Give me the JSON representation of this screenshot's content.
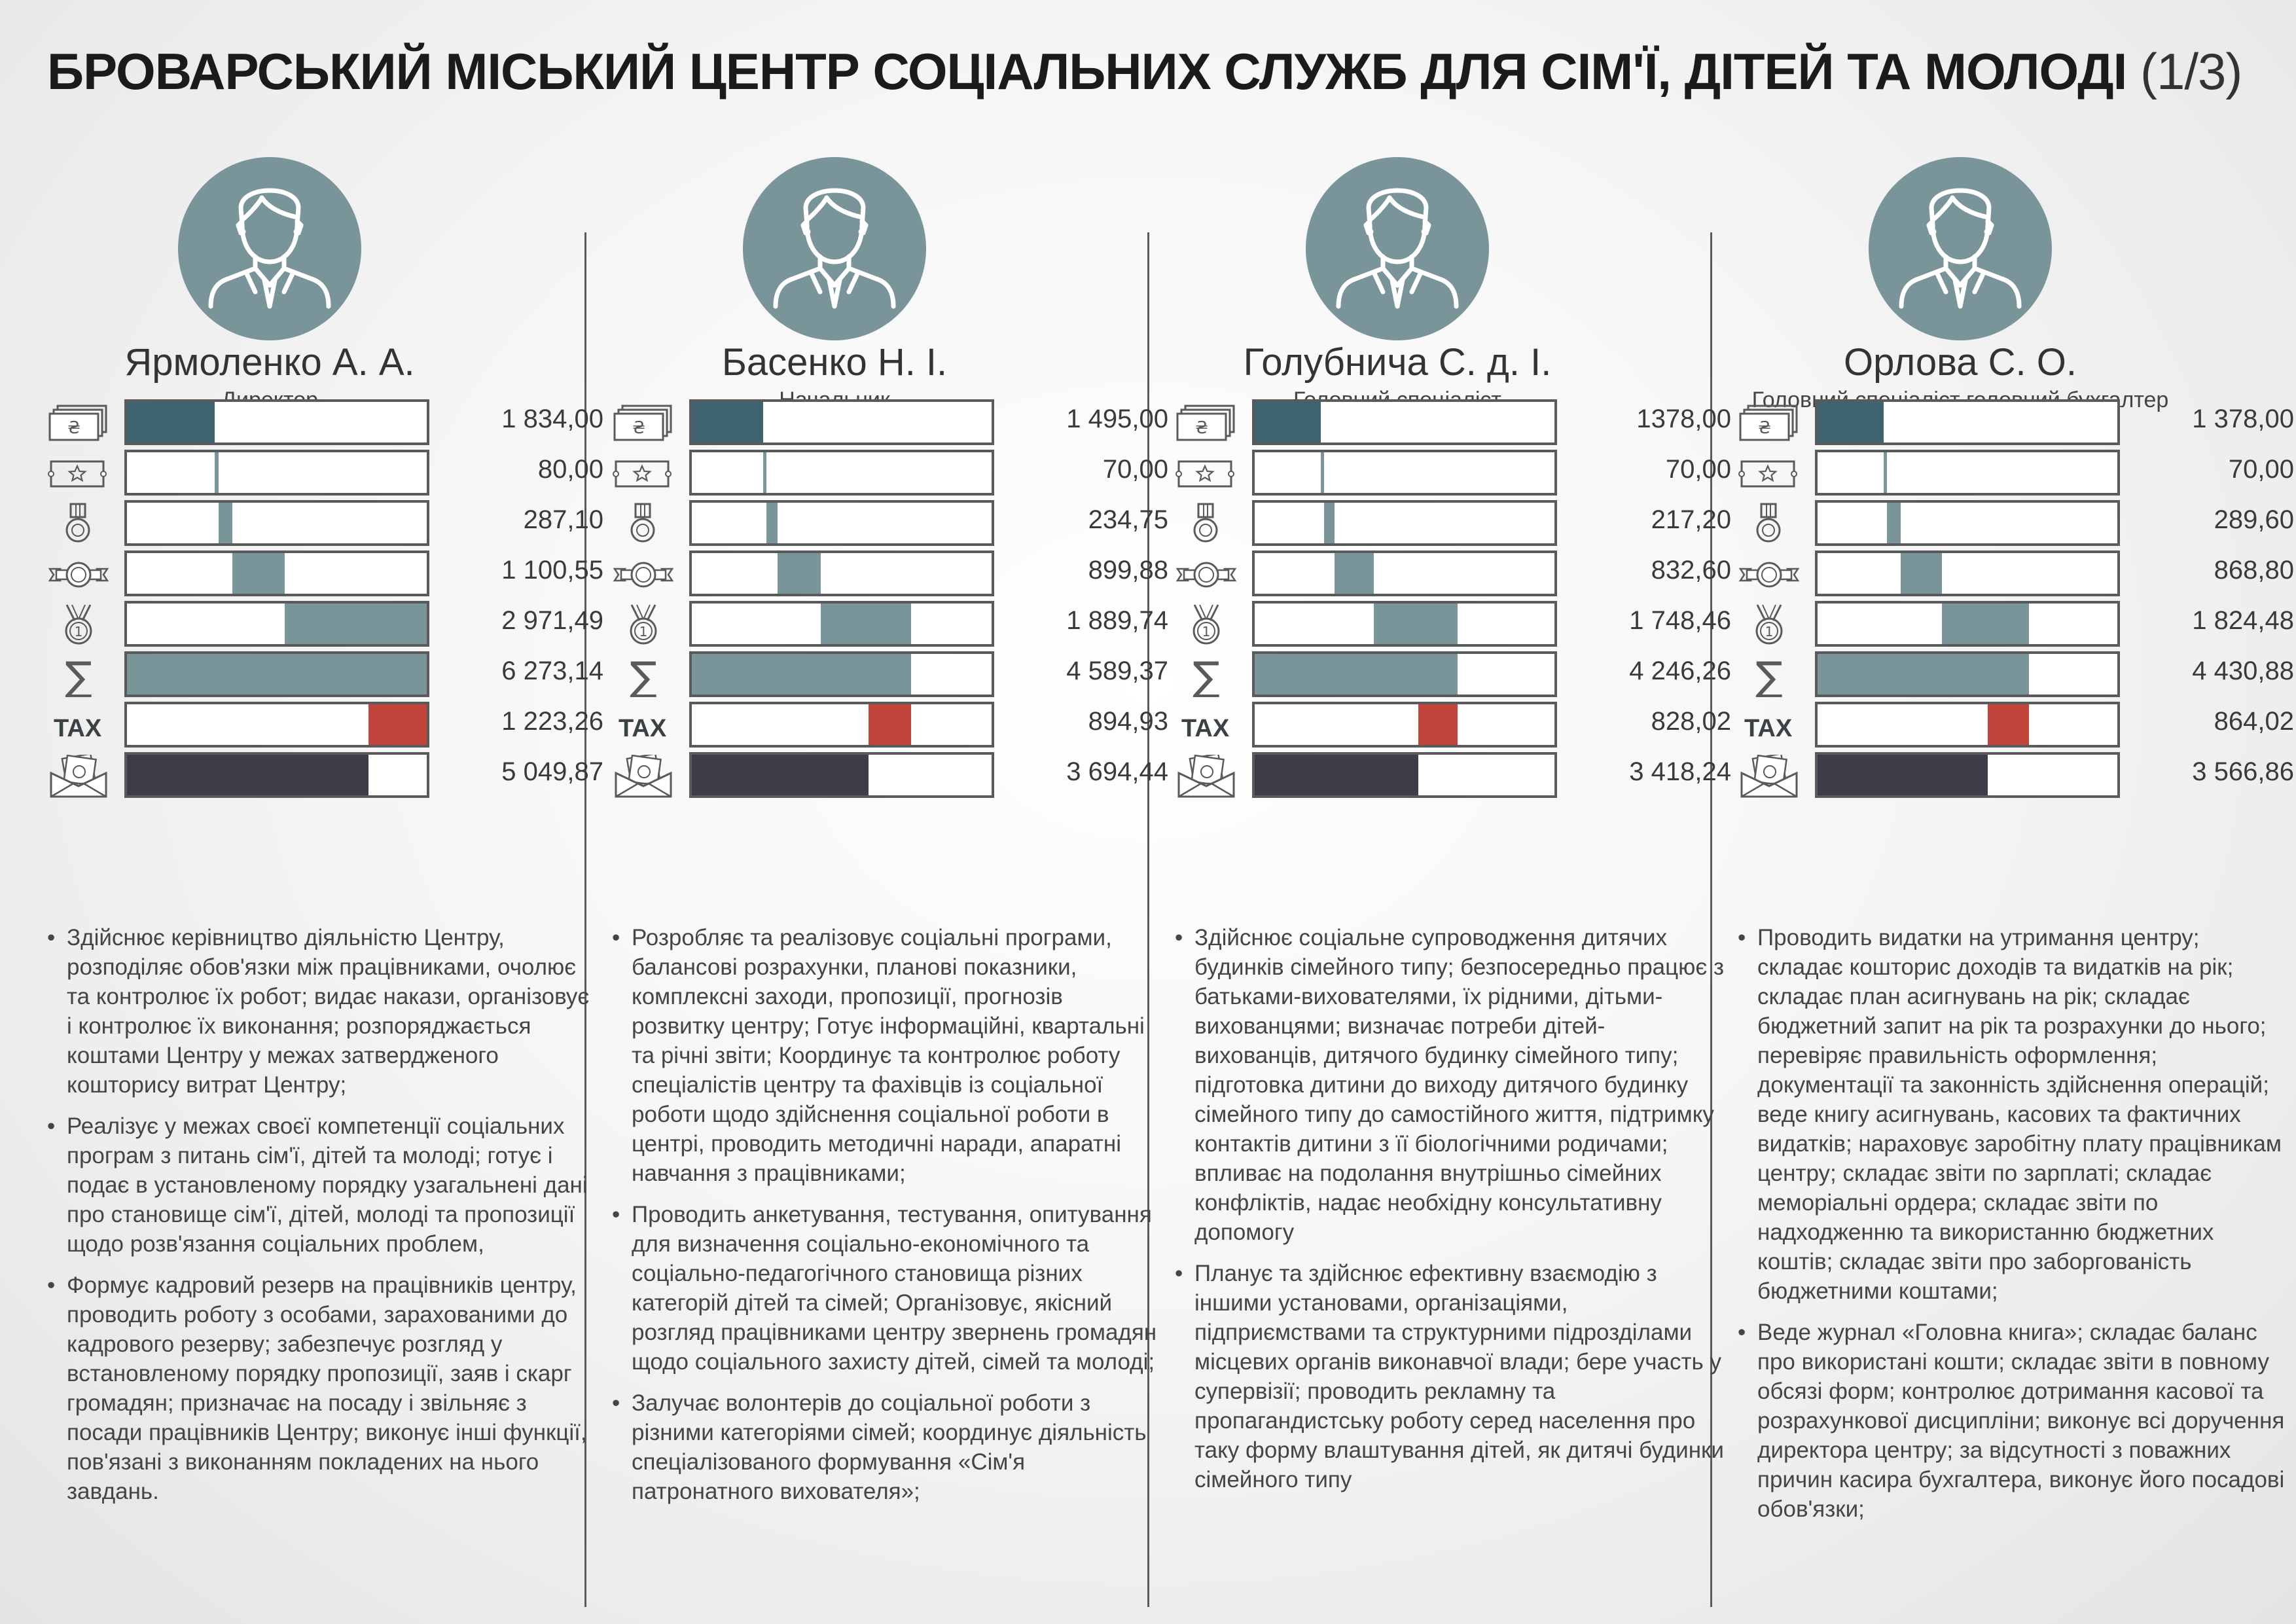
{
  "title": {
    "main": "БРОВАРСЬКИЙ МІСЬКИЙ ЦЕНТР СОЦІАЛЬНИХ СЛУЖБ ДЛЯ СІМ'Ї, ДІТЕЙ ТА МОЛОДІ",
    "part": "(1/3)"
  },
  "colors": {
    "salary": "#3f6470",
    "bonus": "#79959a",
    "tax": "#c0443a",
    "net": "#3d3d4a",
    "avatar": "#79959a"
  },
  "icon_names": [
    "money-icon",
    "ticket-star-icon",
    "medal-icon",
    "badge-icon",
    "award-medal-icon",
    "sum-icon",
    "tax-icon",
    "envelope-money-icon"
  ],
  "tax_label": "TAX",
  "bar_scale_max": 6273.14,
  "employees": [
    {
      "name": "Ярмоленко А. А.",
      "role": "Директор",
      "amounts": [
        1834.0,
        80.0,
        287.1,
        1100.55,
        2971.49,
        6273.14,
        1223.26,
        5049.87
      ],
      "labels": [
        "1 834,00",
        "80,00",
        "287,10",
        "1 100,55",
        "2 971,49",
        "6 273,14",
        "1 223,26",
        "5 049,87"
      ],
      "duties": [
        "Здійснює керівництво діяльністю Центру, розподіляє обов'язки між працівниками, очолює та контролює їх робот; видає накази, організовує і контролює їх виконання; розпоряджається коштами Центру у межах затвердженого кошторису витрат Центру;",
        "Реалізує у межах своєї компетенції соціальних програм з питань сім'ї, дітей та молоді; готує і подає в установленому порядку узагальнені дані про становище сім'ї, дітей, молоді та пропозиції щодо розв'язання соціальних проблем,",
        "Формує кадровий резерв на працівників центру, проводить роботу з особами, зарахованими до кадрового резерву; забезпечує розгляд у встановленому порядку пропозиції, заяв і скарг громадян; призначає на посаду і звільняє з посади працівників Центру; виконує інші функції, пов'язані з виконанням покладених на нього завдань."
      ]
    },
    {
      "name": "Басенко Н. І.",
      "role": "Начальник",
      "amounts": [
        1495.0,
        70.0,
        234.75,
        899.88,
        1889.74,
        4589.37,
        894.93,
        3694.44
      ],
      "labels": [
        "1 495,00",
        "70,00",
        "234,75",
        "899,88",
        "1 889,74",
        "4 589,37",
        "894,93",
        "3 694,44"
      ],
      "duties": [
        "Розробляє та реалізовує соціальні програми, балансові розрахунки, планові показники, комплексні заходи, пропозиції, прогнозів розвитку центру; Готує інформаційні, квартальні та річні звіти; Координує та контролює роботу спеціалістів центру та фахівців із соціальної роботи щодо здійснення соціальної роботи в центрі, проводить методичні наради, апаратні навчання з працівниками;",
        "Проводить анкетування, тестування, опитування для визначення соціально-економічного та соціально-педагогічного становища різних категорій дітей та сімей; Організовує, якісний розгляд працівниками центру звернень громадян щодо соціального захисту дітей, сімей та молоді;",
        "Залучає волонтерів до соціальної роботи з різними категоріями сімей; координує діяльність спеціалізованого формування «Сім'я патронатного вихователя»;"
      ]
    },
    {
      "name": "Голубнича С. д. І.",
      "role": "Головний спеціаліст",
      "amounts": [
        1378.0,
        70.0,
        217.2,
        832.6,
        1748.46,
        4246.26,
        828.02,
        3418.24
      ],
      "labels": [
        "1378,00",
        "70,00",
        "217,20",
        "832,60",
        "1 748,46",
        "4 246,26",
        "828,02",
        "3 418,24"
      ],
      "duties": [
        "Здійснює соціальне супроводження дитячих будинків сімейного типу; безпосередньо працює з батьками-вихователями, їх рідними, дітьми-вихованцями; визначає потреби дітей-вихованців, дитячого будинку сімейного типу; підготовка дитини до виходу дитячого будинку сімейного типу до самостійного життя, підтримку контактів дитини з її біологічними родичами; впливає на подолання внутрішньо сімейних конфліктів, надає необхідну консультативну допомогу",
        "Планує та здійснює ефективну взаємодію з іншими установами, організаціями, підприємствами та структурними підрозділами місцевих органів виконавчої влади; бере участь у супервізії; проводить рекламну та пропагандистську роботу серед населення про таку форму влаштування дітей, як дитячі будинки сімейного типу"
      ]
    },
    {
      "name": "Орлова С. О.",
      "role": "Головний спеціаліст головний бухгалтер",
      "amounts": [
        1378.0,
        70.0,
        289.6,
        868.8,
        1824.48,
        4430.88,
        864.02,
        3566.86
      ],
      "labels": [
        "1 378,00",
        "70,00",
        "289,60",
        "868,80",
        "1 824,48",
        "4 430,88",
        "864,02",
        "3 566,86"
      ],
      "duties": [
        "Проводить видатки на утримання центру; складає кошторис доходів та видатків на рік; складає план асигнувань на рік; складає бюджетний запит на рік та розрахунки до нього; перевіряє правильність оформлення; документації та законність здійснення операцій; веде книгу асигнувань, касових та фактичних видатків; нараховує заробітну плату працівникам центру; складає звіти по зарплаті; складає меморіальні ордера; складає звіти по надходженню та використанню бюджетних коштів; складає звіти про заборгованість бюджетними коштами;",
        "Веде журнал «Головна книга»; складає баланс про використані кошти; складає звіти в повному обсязі форм; контролює дотримання касової та розрахункової дисципліни; виконує всі доручення директора центру; за відсутності з поважних причин касира бухгалтера, виконує його посадові обов'язки;"
      ]
    }
  ]
}
